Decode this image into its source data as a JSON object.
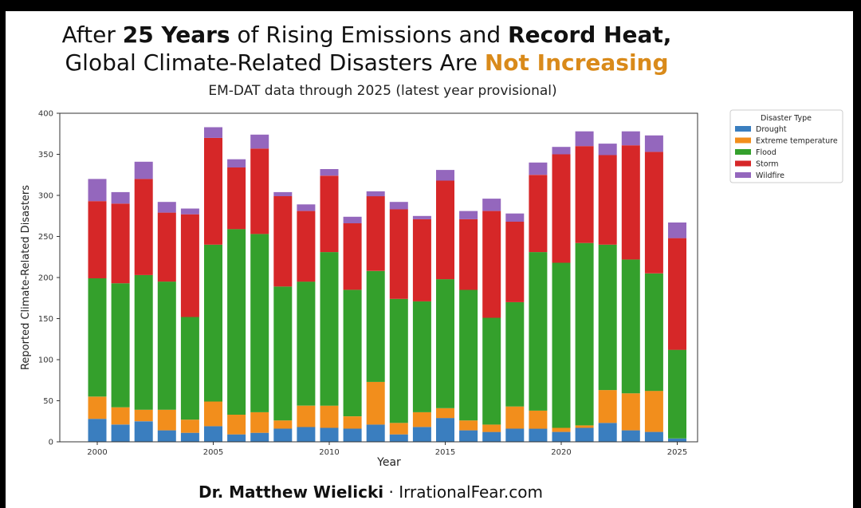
{
  "title": {
    "line1_a": "After ",
    "line1_b": "25 Years",
    "line1_c": " of Rising Emissions and ",
    "line1_d": "Record Heat,",
    "line2_a": "Global Climate-Related Disasters Are ",
    "line2_b": "Not Increasing"
  },
  "subtitle": "EM-DAT data through 2025 (latest year provisional)",
  "footer": {
    "author": "Dr. Matthew Wielicki",
    "separator": " · ",
    "site": "IrrationalFear.com"
  },
  "colors": {
    "accent": "#d98a1a",
    "Drought": "#3a7ebf",
    "Extreme temperature": "#f28e1c",
    "Flood": "#34a02c",
    "Storm": "#d62728",
    "Wildfire": "#9467bd"
  },
  "chart_data": {
    "type": "bar",
    "stacked": true,
    "xlabel": "Year",
    "ylabel": "Reported Climate-Related Disasters",
    "ylim": [
      0,
      400
    ],
    "yticks": [
      0,
      50,
      100,
      150,
      200,
      250,
      300,
      350,
      400
    ],
    "xticks": [
      2000,
      2005,
      2010,
      2015,
      2020,
      2025
    ],
    "legend_title": "Disaster Type",
    "legend_position": "right",
    "categories": [
      2000,
      2001,
      2002,
      2003,
      2004,
      2005,
      2006,
      2007,
      2008,
      2009,
      2010,
      2011,
      2012,
      2013,
      2014,
      2015,
      2016,
      2017,
      2018,
      2019,
      2020,
      2021,
      2022,
      2023,
      2024,
      2025
    ],
    "series": [
      {
        "name": "Drought",
        "values": [
          28,
          21,
          25,
          14,
          11,
          19,
          9,
          11,
          16,
          18,
          17,
          16,
          21,
          9,
          18,
          29,
          14,
          12,
          16,
          16,
          12,
          17,
          23,
          14,
          12,
          4
        ]
      },
      {
        "name": "Extreme temperature",
        "values": [
          27,
          21,
          14,
          25,
          16,
          30,
          24,
          25,
          10,
          26,
          27,
          15,
          52,
          14,
          18,
          12,
          12,
          9,
          27,
          22,
          5,
          3,
          40,
          45,
          50,
          0
        ]
      },
      {
        "name": "Flood",
        "values": [
          144,
          151,
          164,
          156,
          125,
          191,
          226,
          217,
          163,
          151,
          187,
          154,
          135,
          151,
          135,
          157,
          159,
          130,
          127,
          193,
          201,
          222,
          177,
          163,
          143,
          108
        ]
      },
      {
        "name": "Storm",
        "values": [
          94,
          97,
          117,
          84,
          125,
          130,
          75,
          104,
          110,
          86,
          93,
          81,
          91,
          109,
          100,
          120,
          86,
          130,
          98,
          94,
          132,
          118,
          109,
          139,
          148,
          136
        ]
      },
      {
        "name": "Wildfire",
        "values": [
          27,
          14,
          21,
          13,
          7,
          13,
          10,
          17,
          5,
          8,
          8,
          8,
          6,
          9,
          4,
          13,
          10,
          15,
          10,
          15,
          9,
          18,
          14,
          17,
          20,
          19
        ]
      }
    ]
  }
}
